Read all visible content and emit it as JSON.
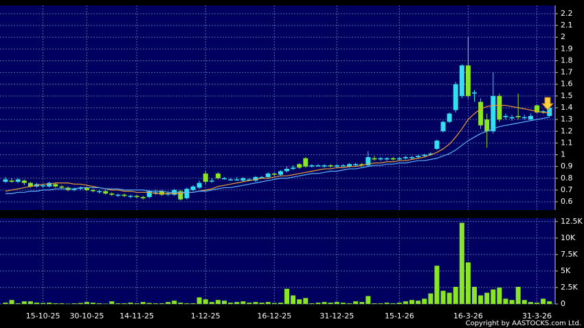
{
  "chart_data": {
    "type": "candlestick",
    "categories": [
      null,
      null,
      null,
      null,
      null,
      null,
      "15-10-25",
      null,
      null,
      null,
      null,
      null,
      null,
      "30-10-25",
      null,
      null,
      null,
      null,
      null,
      null,
      null,
      "14-11-25",
      null,
      null,
      null,
      null,
      null,
      null,
      null,
      null,
      null,
      null,
      "1-12-25",
      null,
      null,
      null,
      null,
      null,
      null,
      null,
      null,
      null,
      null,
      "16-12-25",
      null,
      null,
      null,
      null,
      null,
      null,
      null,
      null,
      null,
      "31-12-25",
      null,
      null,
      null,
      null,
      null,
      null,
      null,
      null,
      null,
      "15-1-26",
      null,
      null,
      null,
      null,
      null,
      null,
      null,
      null,
      null,
      null,
      "16-3-26",
      null,
      null,
      null,
      null,
      null,
      null,
      null,
      null,
      null,
      null,
      "31-3-26",
      null,
      null
    ],
    "open": [
      0.77,
      0.78,
      0.77,
      0.78,
      0.76,
      0.73,
      0.74,
      0.73,
      0.75,
      0.73,
      0.72,
      0.7,
      0.71,
      0.72,
      0.7,
      0.69,
      0.69,
      0.67,
      0.66,
      0.66,
      0.65,
      0.65,
      0.64,
      0.64,
      0.68,
      0.69,
      0.67,
      0.66,
      0.69,
      0.63,
      0.7,
      0.72,
      0.84,
      0.78,
      0.84,
      0.8,
      0.79,
      0.79,
      0.78,
      0.79,
      0.78,
      0.81,
      0.81,
      0.84,
      0.83,
      0.86,
      0.88,
      0.92,
      0.97,
      0.9,
      0.91,
      0.9,
      0.91,
      0.9,
      0.91,
      0.9,
      0.91,
      0.92,
      0.91,
      0.97,
      0.96,
      0.96,
      0.97,
      0.96,
      0.97,
      0.97,
      0.98,
      0.99,
      1.0,
      1.05,
      1.2,
      1.28,
      1.38,
      1.5,
      1.76,
      1.52,
      1.45,
      1.3,
      1.2,
      1.5,
      1.32,
      1.31,
      1.33,
      1.32,
      1.3,
      1.42,
      1.37,
      1.33
    ],
    "high": [
      0.81,
      0.8,
      0.8,
      0.79,
      0.77,
      0.76,
      0.75,
      0.77,
      0.76,
      0.74,
      0.73,
      0.72,
      0.73,
      0.73,
      0.71,
      0.7,
      0.7,
      0.68,
      0.67,
      0.67,
      0.66,
      0.66,
      0.65,
      0.7,
      0.7,
      0.7,
      0.69,
      0.71,
      0.7,
      0.72,
      0.74,
      0.78,
      0.86,
      0.8,
      0.85,
      0.81,
      0.8,
      0.81,
      0.81,
      0.8,
      0.82,
      0.82,
      0.85,
      0.85,
      0.87,
      0.9,
      0.91,
      0.93,
      0.98,
      0.92,
      0.92,
      0.92,
      0.92,
      0.92,
      0.92,
      0.93,
      0.93,
      0.93,
      1.03,
      0.99,
      0.98,
      0.98,
      0.98,
      0.98,
      0.99,
      0.99,
      1.0,
      1.01,
      1.02,
      1.13,
      1.29,
      1.36,
      1.62,
      1.77,
      2.0,
      1.55,
      1.48,
      1.35,
      1.7,
      1.52,
      1.35,
      1.34,
      1.52,
      1.34,
      1.35,
      1.43,
      1.38,
      1.42
    ],
    "low": [
      0.76,
      0.76,
      0.76,
      0.74,
      0.72,
      0.72,
      0.72,
      0.72,
      0.72,
      0.71,
      0.69,
      0.69,
      0.7,
      0.69,
      0.68,
      0.67,
      0.66,
      0.65,
      0.64,
      0.64,
      0.63,
      0.63,
      0.62,
      0.63,
      0.66,
      0.65,
      0.65,
      0.65,
      0.61,
      0.62,
      0.69,
      0.71,
      0.75,
      0.76,
      0.79,
      0.79,
      0.78,
      0.78,
      0.77,
      0.78,
      0.77,
      0.8,
      0.8,
      0.82,
      0.82,
      0.85,
      0.87,
      0.88,
      0.89,
      0.89,
      0.9,
      0.89,
      0.89,
      0.89,
      0.9,
      0.89,
      0.9,
      0.9,
      0.9,
      0.95,
      0.95,
      0.95,
      0.95,
      0.95,
      0.96,
      0.96,
      0.97,
      0.98,
      0.99,
      1.04,
      1.19,
      1.27,
      1.36,
      1.48,
      1.48,
      1.45,
      1.22,
      1.06,
      1.18,
      1.28,
      1.3,
      1.29,
      1.3,
      1.3,
      1.29,
      1.35,
      1.35,
      1.32
    ],
    "close": [
      0.79,
      0.77,
      0.79,
      0.76,
      0.73,
      0.75,
      0.74,
      0.76,
      0.73,
      0.72,
      0.7,
      0.71,
      0.72,
      0.7,
      0.69,
      0.69,
      0.67,
      0.66,
      0.66,
      0.65,
      0.65,
      0.64,
      0.63,
      0.69,
      0.68,
      0.66,
      0.67,
      0.7,
      0.62,
      0.71,
      0.73,
      0.76,
      0.77,
      0.78,
      0.8,
      0.8,
      0.79,
      0.79,
      0.8,
      0.79,
      0.81,
      0.81,
      0.84,
      0.83,
      0.86,
      0.88,
      0.89,
      0.89,
      0.9,
      0.91,
      0.91,
      0.91,
      0.9,
      0.91,
      0.91,
      0.92,
      0.92,
      0.91,
      0.98,
      0.96,
      0.97,
      0.97,
      0.96,
      0.97,
      0.98,
      0.98,
      0.99,
      1.0,
      1.01,
      1.12,
      1.28,
      1.35,
      1.6,
      1.76,
      1.5,
      1.53,
      1.25,
      1.2,
      1.5,
      1.3,
      1.33,
      1.32,
      1.32,
      1.32,
      1.33,
      1.36,
      1.37,
      1.4
    ],
    "up_color": "#33e0f0",
    "down_color": "#88e622",
    "ylim": [
      0.53,
      2.27
    ],
    "yticks": [
      0.6,
      0.7,
      0.8,
      0.9,
      1,
      1.1,
      1.2,
      1.3,
      1.4,
      1.5,
      1.6,
      1.7,
      1.8,
      1.9,
      2,
      2.1,
      2.2
    ],
    "grid": true,
    "moving_averages": [
      {
        "color": "#f0a030",
        "values": [
          0.69,
          0.7,
          0.71,
          0.72,
          0.73,
          0.74,
          0.75,
          0.75,
          0.76,
          0.76,
          0.76,
          0.75,
          0.75,
          0.74,
          0.73,
          0.72,
          0.71,
          0.7,
          0.7,
          0.69,
          0.69,
          0.68,
          0.68,
          0.68,
          0.67,
          0.67,
          0.67,
          0.67,
          0.67,
          0.68,
          0.68,
          0.69,
          0.7,
          0.71,
          0.73,
          0.74,
          0.75,
          0.76,
          0.77,
          0.78,
          0.79,
          0.8,
          0.8,
          0.81,
          0.82,
          0.82,
          0.83,
          0.84,
          0.85,
          0.86,
          0.87,
          0.88,
          0.88,
          0.89,
          0.89,
          0.9,
          0.9,
          0.91,
          0.92,
          0.93,
          0.93,
          0.94,
          0.94,
          0.95,
          0.95,
          0.96,
          0.97,
          0.98,
          1.0,
          1.02,
          1.05,
          1.09,
          1.15,
          1.22,
          1.3,
          1.35,
          1.39,
          1.41,
          1.42,
          1.42,
          1.42,
          1.41,
          1.4,
          1.39,
          1.38,
          1.37,
          1.36,
          1.36
        ]
      },
      {
        "color": "#5ab4ff",
        "values": [
          0.67,
          0.67,
          0.68,
          0.68,
          0.69,
          0.69,
          0.7,
          0.7,
          0.71,
          0.71,
          0.71,
          0.71,
          0.72,
          0.72,
          0.72,
          0.72,
          0.71,
          0.71,
          0.71,
          0.7,
          0.7,
          0.7,
          0.7,
          0.69,
          0.69,
          0.69,
          0.68,
          0.68,
          0.68,
          0.68,
          0.68,
          0.69,
          0.69,
          0.7,
          0.71,
          0.72,
          0.72,
          0.73,
          0.74,
          0.75,
          0.76,
          0.77,
          0.78,
          0.79,
          0.8,
          0.8,
          0.81,
          0.82,
          0.83,
          0.84,
          0.84,
          0.85,
          0.86,
          0.86,
          0.87,
          0.88,
          0.88,
          0.89,
          0.9,
          0.91,
          0.91,
          0.92,
          0.92,
          0.93,
          0.93,
          0.94,
          0.95,
          0.95,
          0.96,
          0.97,
          0.99,
          1.01,
          1.04,
          1.08,
          1.12,
          1.15,
          1.18,
          1.2,
          1.22,
          1.24,
          1.25,
          1.26,
          1.27,
          1.28,
          1.29,
          1.3,
          1.31,
          1.32
        ]
      }
    ],
    "volume": {
      "color": "#88e622",
      "values": [
        200,
        600,
        100,
        400,
        400,
        200,
        150,
        200,
        100,
        100,
        50,
        100,
        150,
        300,
        200,
        100,
        50,
        400,
        100,
        100,
        200,
        100,
        300,
        150,
        100,
        100,
        300,
        500,
        200,
        100,
        100,
        1000,
        700,
        300,
        600,
        500,
        200,
        300,
        400,
        200,
        300,
        200,
        300,
        150,
        200,
        2300,
        1300,
        700,
        900,
        100,
        200,
        300,
        200,
        300,
        200,
        100,
        400,
        300,
        1200,
        100,
        100,
        200,
        100,
        200,
        400,
        600,
        500,
        800,
        1600,
        5800,
        2000,
        1700,
        2600,
        12300,
        6300,
        2600,
        1300,
        1700,
        2200,
        2500,
        800,
        600,
        2600,
        600,
        300,
        200,
        800,
        400
      ],
      "ylim": [
        0,
        13000
      ],
      "yticks": [
        0,
        {
          "value": 2500,
          "label": "2.5K"
        },
        {
          "value": 5000,
          "label": "5K"
        },
        {
          "value": 7500,
          "label": "7.5K"
        },
        {
          "value": 10000,
          "label": "10K"
        },
        {
          "value": 12500,
          "label": "12.5K"
        }
      ]
    },
    "copyright": "Copyright by AASTOCKS.com Ltd."
  }
}
